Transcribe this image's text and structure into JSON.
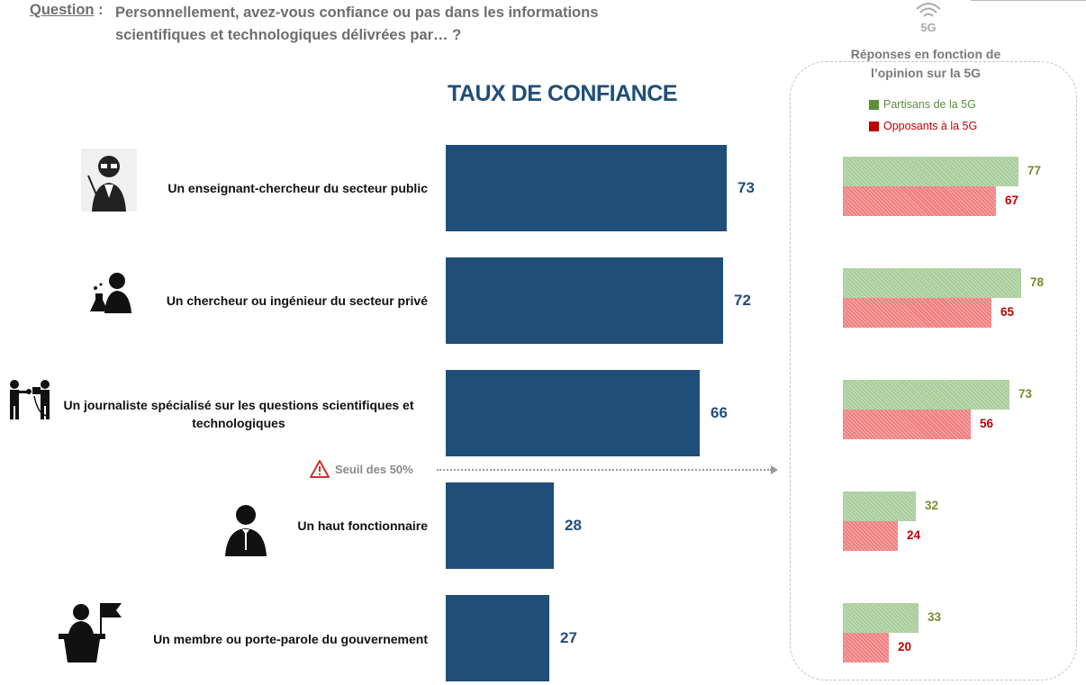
{
  "question": {
    "label": "Question",
    "separator": " :",
    "text": "Personnellement, avez-vous confiance ou pas dans les informations scientifiques et technologiques délivrées par… ?"
  },
  "chart_data": [
    {
      "type": "bar",
      "orientation": "horizontal",
      "title": "TAUX DE CONFIANCE",
      "categories": [
        "Un enseignant-chercheur du secteur public",
        "Un chercheur ou ingénieur du secteur privé",
        "Un journaliste spécialisé sur les questions scientifiques et technologiques",
        "Un haut fonctionnaire",
        "Un membre ou porte-parole du gouvernement"
      ],
      "values": [
        73,
        72,
        66,
        28,
        27
      ],
      "xlim": [
        0,
        100
      ],
      "color": "#1f4e79",
      "annotation": "Seuil des 50%",
      "threshold": 50,
      "grid": false
    },
    {
      "type": "bar",
      "orientation": "horizontal",
      "title": "Réponses en fonction de l’opinion sur la 5G",
      "categories": [
        "Un enseignant-chercheur du secteur public",
        "Un chercheur ou ingénieur du secteur privé",
        "Un journaliste spécialisé sur les questions scientifiques et technologiques",
        "Un haut fonctionnaire",
        "Un membre ou porte-parole du gouvernement"
      ],
      "series": [
        {
          "name": "Partisans de la 5G",
          "values": [
            77,
            78,
            73,
            32,
            33
          ],
          "color": "#a6cd98",
          "label_color": "#7a8a2a"
        },
        {
          "name": "Opposants à la 5G",
          "values": [
            67,
            65,
            56,
            24,
            20
          ],
          "color": "#f07f7f",
          "label_color": "#c00000"
        }
      ],
      "legend_position": "top-left",
      "icon": "5G"
    }
  ],
  "colors": {
    "main_bar": "#1f4e79",
    "legend_green": "#5a8f3c",
    "legend_red": "#c00000",
    "warning": "#d32f2f"
  },
  "icons": [
    "scientist-icon",
    "lab-researcher-icon",
    "journalist-icon",
    "official-icon",
    "speaker-flag-icon",
    "warning-icon",
    "wifi-5g-icon"
  ]
}
